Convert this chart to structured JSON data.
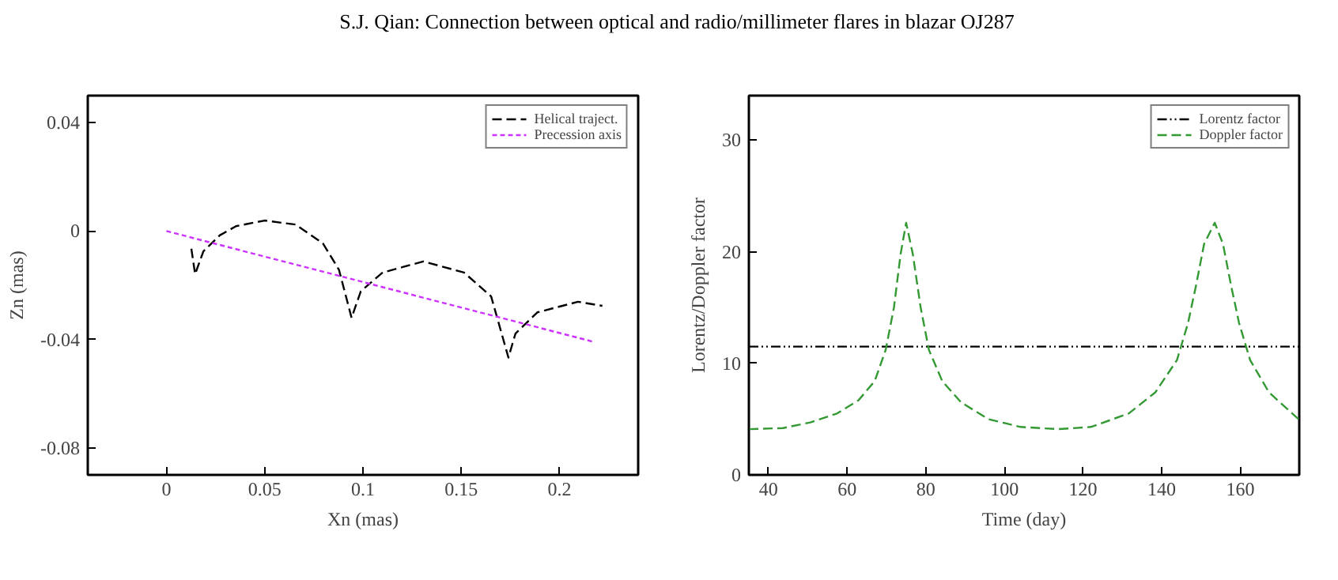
{
  "chart_data": [
    {
      "type": "line",
      "title": "S.J. Qian: Connection between optical and radio/millimeter flares in blazar OJ287",
      "xlabel": "Xn (mas)",
      "ylabel": "Zn (mas)",
      "xlim": [
        -0.04,
        0.24
      ],
      "ylim": [
        -0.09,
        0.05
      ],
      "xticks": [
        0,
        0.05,
        0.1,
        0.15,
        0.2
      ],
      "yticks": [
        0.04,
        0,
        -0.04,
        -0.08
      ],
      "legend": "top right",
      "grid": false,
      "series": [
        {
          "name": "Helical traject.",
          "color": "#000000",
          "line_style": "dashed",
          "x": [
            0.0127,
            0.0146,
            0.0188,
            0.0271,
            0.0354,
            0.05,
            0.0657,
            0.0796,
            0.0878,
            0.0942,
            0.0989,
            0.11,
            0.1307,
            0.1514,
            0.1652,
            0.174,
            0.1776,
            0.1887,
            0.2094,
            0.2218
          ],
          "values": [
            -0.0065,
            -0.0159,
            -0.0075,
            -0.0016,
            0.0018,
            0.0039,
            0.0024,
            -0.0045,
            -0.0143,
            -0.032,
            -0.0222,
            -0.0153,
            -0.0112,
            -0.0153,
            -0.0241,
            -0.0467,
            -0.0378,
            -0.03,
            -0.0261,
            -0.0276
          ]
        },
        {
          "name": "Precession axis",
          "color": "#cc33ff",
          "line_style": "dotted",
          "x": [
            0,
            0.218
          ],
          "values": [
            0,
            -0.041
          ]
        }
      ]
    },
    {
      "type": "line",
      "xlabel": "Time (day)",
      "ylabel": "Lorentz/Doppler factor",
      "xlim": [
        35,
        175
      ],
      "ylim": [
        0,
        34
      ],
      "xticks": [
        40,
        60,
        80,
        100,
        120,
        140,
        160
      ],
      "yticks": [
        0,
        10,
        20,
        30
      ],
      "legend": "top right",
      "grid": false,
      "series": [
        {
          "name": "Lorentz factor",
          "color": "#000000",
          "line_style": "dashdot",
          "x": [
            35,
            175
          ],
          "values": [
            11.5,
            11.5
          ]
        },
        {
          "name": "Doppler factor",
          "color": "#339933",
          "line_style": "dashed",
          "x": [
            35,
            43.7,
            50.6,
            57.4,
            62.9,
            67.0,
            69.8,
            71.9,
            73.6,
            75,
            76.7,
            78.7,
            80.8,
            84.2,
            89.0,
            95.9,
            104.1,
            113.7,
            122,
            131.6,
            138.4,
            143.9,
            146.7,
            148.7,
            150.8,
            153.5,
            155.6,
            157.7,
            159.7,
            162.5,
            167.3,
            174.8
          ],
          "values": [
            4.1,
            4.2,
            4.7,
            5.5,
            6.7,
            8.4,
            11.2,
            15.0,
            19.8,
            22.6,
            19.8,
            15.0,
            11.2,
            8.4,
            6.5,
            5.0,
            4.3,
            4.1,
            4.3,
            5.5,
            7.4,
            10.3,
            13.6,
            16.9,
            20.7,
            22.6,
            20.7,
            16.9,
            13.6,
            10.3,
            7.4,
            5.0
          ]
        }
      ]
    }
  ]
}
